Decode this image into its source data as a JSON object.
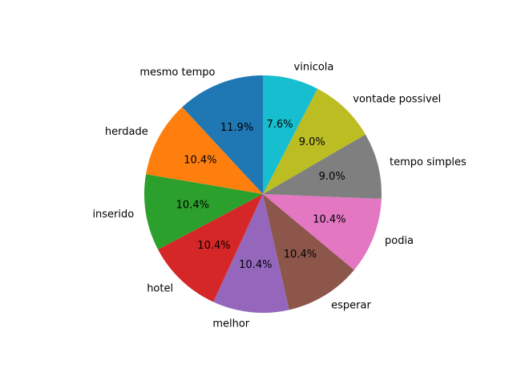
{
  "chart_data": {
    "type": "pie",
    "title": "",
    "start_angle_deg": 90,
    "direction": "counterclockwise",
    "slices": [
      {
        "label": "mesmo tempo",
        "value": 11.9,
        "pct_label": "11.9%",
        "color": "#1f77b4"
      },
      {
        "label": "herdade",
        "value": 10.4,
        "pct_label": "10.4%",
        "color": "#ff7f0e"
      },
      {
        "label": "inserido",
        "value": 10.4,
        "pct_label": "10.4%",
        "color": "#2ca02c"
      },
      {
        "label": "hotel",
        "value": 10.4,
        "pct_label": "10.4%",
        "color": "#d62728"
      },
      {
        "label": "melhor",
        "value": 10.4,
        "pct_label": "10.4%",
        "color": "#9467bd"
      },
      {
        "label": "esperar",
        "value": 10.4,
        "pct_label": "10.4%",
        "color": "#8c564b"
      },
      {
        "label": "podia",
        "value": 10.4,
        "pct_label": "10.4%",
        "color": "#e377c2"
      },
      {
        "label": "tempo simples",
        "value": 9.0,
        "pct_label": "9.0%",
        "color": "#7f7f7f"
      },
      {
        "label": "vontade possivel",
        "value": 9.0,
        "pct_label": "9.0%",
        "color": "#bcbd22"
      },
      {
        "label": "vinicola",
        "value": 7.6,
        "pct_label": "7.6%",
        "color": "#17becf"
      }
    ]
  }
}
